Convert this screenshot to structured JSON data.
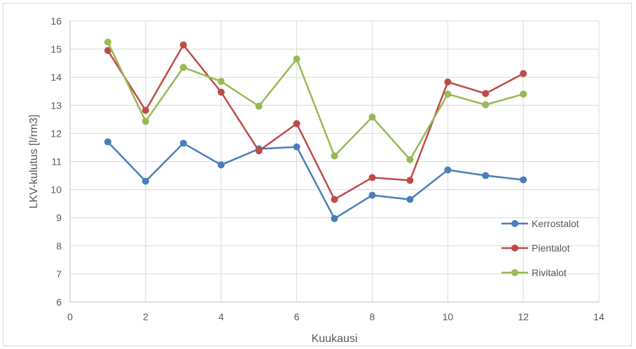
{
  "chart_data": {
    "type": "scatter",
    "title": "",
    "xlabel": "Kuukausi",
    "ylabel": "LKV-kulutus [l/rm3]",
    "xlim": [
      0,
      14
    ],
    "ylim": [
      6,
      16
    ],
    "xticks": [
      0,
      2,
      4,
      6,
      8,
      10,
      12,
      14
    ],
    "yticks": [
      6,
      7,
      8,
      9,
      10,
      11,
      12,
      13,
      14,
      15,
      16
    ],
    "grid": true,
    "legend_position": "right",
    "x": [
      1,
      2,
      3,
      4,
      5,
      6,
      7,
      8,
      9,
      10,
      11,
      12
    ],
    "series": [
      {
        "name": "Kerrostalot",
        "color": "#4a7ebb",
        "values": [
          11.7,
          10.3,
          11.65,
          10.88,
          11.45,
          11.52,
          8.97,
          9.8,
          9.65,
          10.7,
          10.5,
          10.35
        ]
      },
      {
        "name": "Pientalot",
        "color": "#be4b48",
        "values": [
          14.95,
          12.82,
          15.15,
          13.47,
          11.38,
          12.35,
          9.65,
          10.43,
          10.33,
          13.83,
          13.42,
          14.13
        ]
      },
      {
        "name": "Rivitalot",
        "color": "#98b954",
        "values": [
          15.25,
          12.43,
          14.35,
          13.85,
          12.97,
          14.65,
          11.2,
          12.58,
          11.07,
          13.4,
          13.02,
          13.4
        ]
      }
    ]
  }
}
